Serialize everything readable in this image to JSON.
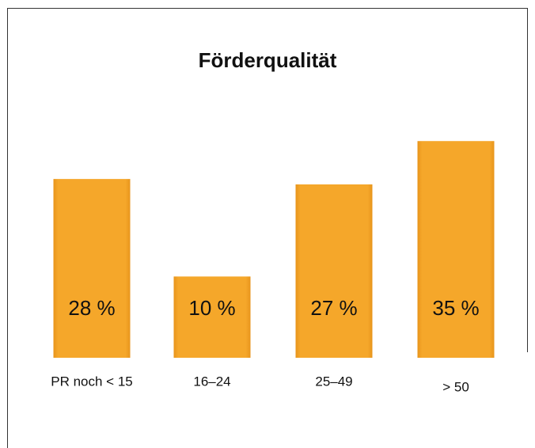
{
  "chart_data": {
    "type": "bar",
    "title": "Förderqualität",
    "categories": [
      "PR noch < 15",
      "16–24",
      "25–49",
      "> 50"
    ],
    "values": [
      28,
      10,
      27,
      35
    ],
    "value_labels": [
      "28 %",
      "10 %",
      "27 %",
      "35 %"
    ],
    "color": "#f5a72a",
    "ylim": [
      -5,
      40
    ]
  }
}
